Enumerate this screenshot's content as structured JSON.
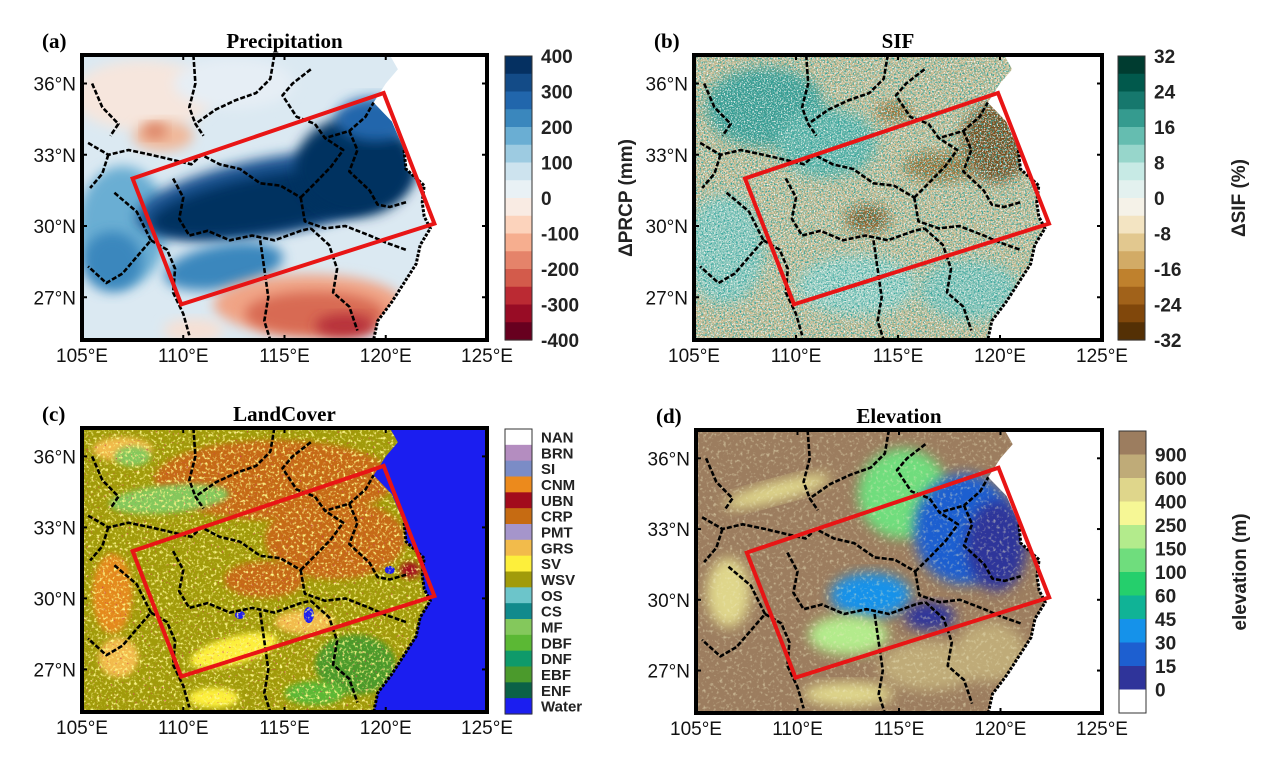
{
  "chart_data": [
    {
      "type": "heatmap",
      "panel_label": "(a)",
      "title": "Precipitation",
      "xlabel": "",
      "ylabel": "",
      "xlim": [
        105,
        125
      ],
      "ylim": [
        25.2,
        37.2
      ],
      "xticks": [
        105,
        110,
        115,
        120,
        125
      ],
      "xtick_labels": [
        "105°E",
        "110°E",
        "115°E",
        "120°E",
        "125°E"
      ],
      "yticks": [
        27,
        30,
        33,
        36
      ],
      "ytick_labels": [
        "27°N",
        "30°N",
        "33°N",
        "36°N"
      ],
      "colorbar": {
        "label": "ΔPRCP (mm)",
        "range": [
          -400,
          400
        ],
        "ticks": [
          "400",
          "300",
          "200",
          "100",
          "0",
          "-100",
          "-200",
          "-300",
          "-400"
        ],
        "colors": [
          "#053061",
          "#134b87",
          "#2166ac",
          "#3a87bd",
          "#6aaed3",
          "#9dcbe1",
          "#cde3ee",
          "#e9f1f5",
          "#f9ebe3",
          "#fcd3bc",
          "#f6ae8f",
          "#e5836a",
          "#d35b4b",
          "#bb2a33",
          "#980c25",
          "#67001f"
        ]
      },
      "region_box": {
        "color": "#e81515",
        "corners_lonlat": [
          [
            107.5,
            32.0
          ],
          [
            119.9,
            35.6
          ],
          [
            122.4,
            30.1
          ],
          [
            109.9,
            26.7
          ]
        ]
      },
      "pattern": "wet band inside box (~+400 mm), drying (-100 to -300 mm) south of 28°N between 112–120°E"
    },
    {
      "type": "heatmap",
      "panel_label": "(b)",
      "title": "SIF",
      "xlabel": "",
      "ylabel": "",
      "xlim": [
        105,
        125
      ],
      "ylim": [
        25.2,
        37.2
      ],
      "xticks": [
        105,
        110,
        115,
        120,
        125
      ],
      "xtick_labels": [
        "105°E",
        "110°E",
        "115°E",
        "120°E",
        "125°E"
      ],
      "yticks": [
        27,
        30,
        33,
        36
      ],
      "ytick_labels": [
        "27°N",
        "30°N",
        "33°N",
        "36°N"
      ],
      "colorbar": {
        "label": "ΔSIF (%)",
        "range": [
          -32,
          32
        ],
        "ticks": [
          "32",
          "24",
          "16",
          "8",
          "0",
          "-8",
          "-16",
          "-24",
          "-32"
        ],
        "colors": [
          "#003c30",
          "#01594c",
          "#16786d",
          "#359b8f",
          "#65bdb0",
          "#97d6cb",
          "#c7eae5",
          "#e3f1ef",
          "#f5f2e8",
          "#f3e4c2",
          "#e2c88f",
          "#d2ab66",
          "#bf812d",
          "#a1621a",
          "#80470b",
          "#543005"
        ]
      },
      "region_box": {
        "color": "#e81515",
        "corners_lonlat": [
          [
            107.5,
            32.0
          ],
          [
            119.9,
            35.6
          ],
          [
            122.4,
            30.1
          ],
          [
            109.9,
            26.7
          ]
        ]
      },
      "pattern": "noisy mix; strong negative (brown) in NE of box near 118–121°E, 32–34.5°N"
    },
    {
      "type": "heatmap",
      "panel_label": "(c)",
      "title": "LandCover",
      "xlabel": "",
      "ylabel": "",
      "xlim": [
        105,
        125
      ],
      "ylim": [
        25.2,
        37.2
      ],
      "xticks": [
        105,
        110,
        115,
        120,
        125
      ],
      "xtick_labels": [
        "105°E",
        "110°E",
        "115°E",
        "120°E",
        "125°E"
      ],
      "yticks": [
        27,
        30,
        33,
        36
      ],
      "ytick_labels": [
        "27°N",
        "30°N",
        "33°N",
        "36°N"
      ],
      "colorbar": {
        "label": "",
        "categories": [
          "NAN",
          "BRN",
          "SI",
          "CNM",
          "UBN",
          "CRP",
          "PMT",
          "GRS",
          "SV",
          "WSV",
          "OS",
          "CS",
          "MF",
          "DBF",
          "DNF",
          "EBF",
          "ENF",
          "Water"
        ],
        "colors": [
          "#ffffff",
          "#b48dc0",
          "#7b8cc6",
          "#ec8a1c",
          "#a20b1c",
          "#c66b12",
          "#a595cb",
          "#f2bb4b",
          "#fdef3b",
          "#a19b0a",
          "#6cc5ca",
          "#118a8c",
          "#84c85c",
          "#5bb834",
          "#0f9a6a",
          "#4b9a2c",
          "#0b6147",
          "#1b1ef0"
        ]
      },
      "region_box": {
        "color": "#e81515",
        "corners_lonlat": [
          [
            107.5,
            32.0
          ],
          [
            119.9,
            35.6
          ],
          [
            122.4,
            30.1
          ],
          [
            109.9,
            26.7
          ]
        ]
      }
    },
    {
      "type": "heatmap",
      "panel_label": "(d)",
      "title": "Elevation",
      "xlabel": "",
      "ylabel": "",
      "xlim": [
        105,
        125
      ],
      "ylim": [
        25.2,
        37.2
      ],
      "xticks": [
        105,
        110,
        115,
        120,
        125
      ],
      "xtick_labels": [
        "105°E",
        "110°E",
        "115°E",
        "120°E",
        "125°E"
      ],
      "yticks": [
        27,
        30,
        33,
        36
      ],
      "ytick_labels": [
        "27°N",
        "30°N",
        "33°N",
        "36°N"
      ],
      "colorbar": {
        "label": "elevation (m)",
        "ticks": [
          "900",
          "600",
          "400",
          "250",
          "150",
          "100",
          "60",
          "45",
          "30",
          "15",
          "0"
        ],
        "colors": [
          "#9c7d5f",
          "#bfab78",
          "#dfd68b",
          "#f6f795",
          "#b3eb8c",
          "#6fdd7d",
          "#25cf6c",
          "#10b396",
          "#1592ea",
          "#1d5fd0",
          "#2f349a",
          "#ffffff"
        ]
      },
      "region_box": {
        "color": "#e81515",
        "corners_lonlat": [
          [
            107.5,
            32.0
          ],
          [
            119.9,
            35.6
          ],
          [
            122.4,
            30.1
          ],
          [
            109.9,
            26.7
          ]
        ]
      }
    }
  ]
}
